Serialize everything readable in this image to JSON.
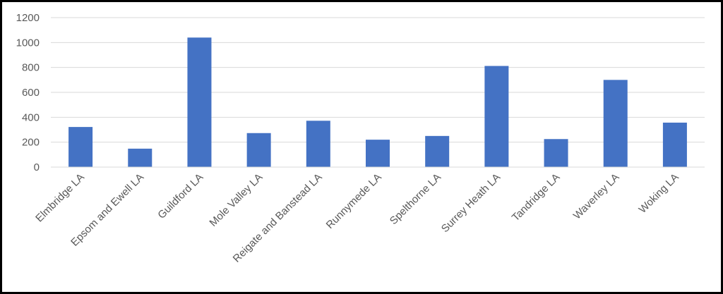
{
  "chart_data": {
    "type": "bar",
    "categories": [
      "Elmbridge LA",
      "Epsom and Ewell LA",
      "Guildford LA",
      "Mole Valley LA",
      "Reigate and Banstead LA",
      "Runnymede LA",
      "Spelthorne LA",
      "Surrey Heath LA",
      "Tandridge LA",
      "Waverley LA",
      "Woking LA"
    ],
    "values": [
      322,
      148,
      1040,
      273,
      372,
      220,
      250,
      812,
      225,
      700,
      357
    ],
    "ylim": [
      0,
      1200
    ],
    "yticks": [
      "0",
      "200",
      "400",
      "600",
      "800",
      "1000",
      "1200"
    ],
    "grid": true,
    "bar_color": "#4472C4",
    "grid_color": "#D9D9D9",
    "axis_color": "#D9D9D9",
    "tick_color": "#595959",
    "frame_color": "#000000"
  }
}
